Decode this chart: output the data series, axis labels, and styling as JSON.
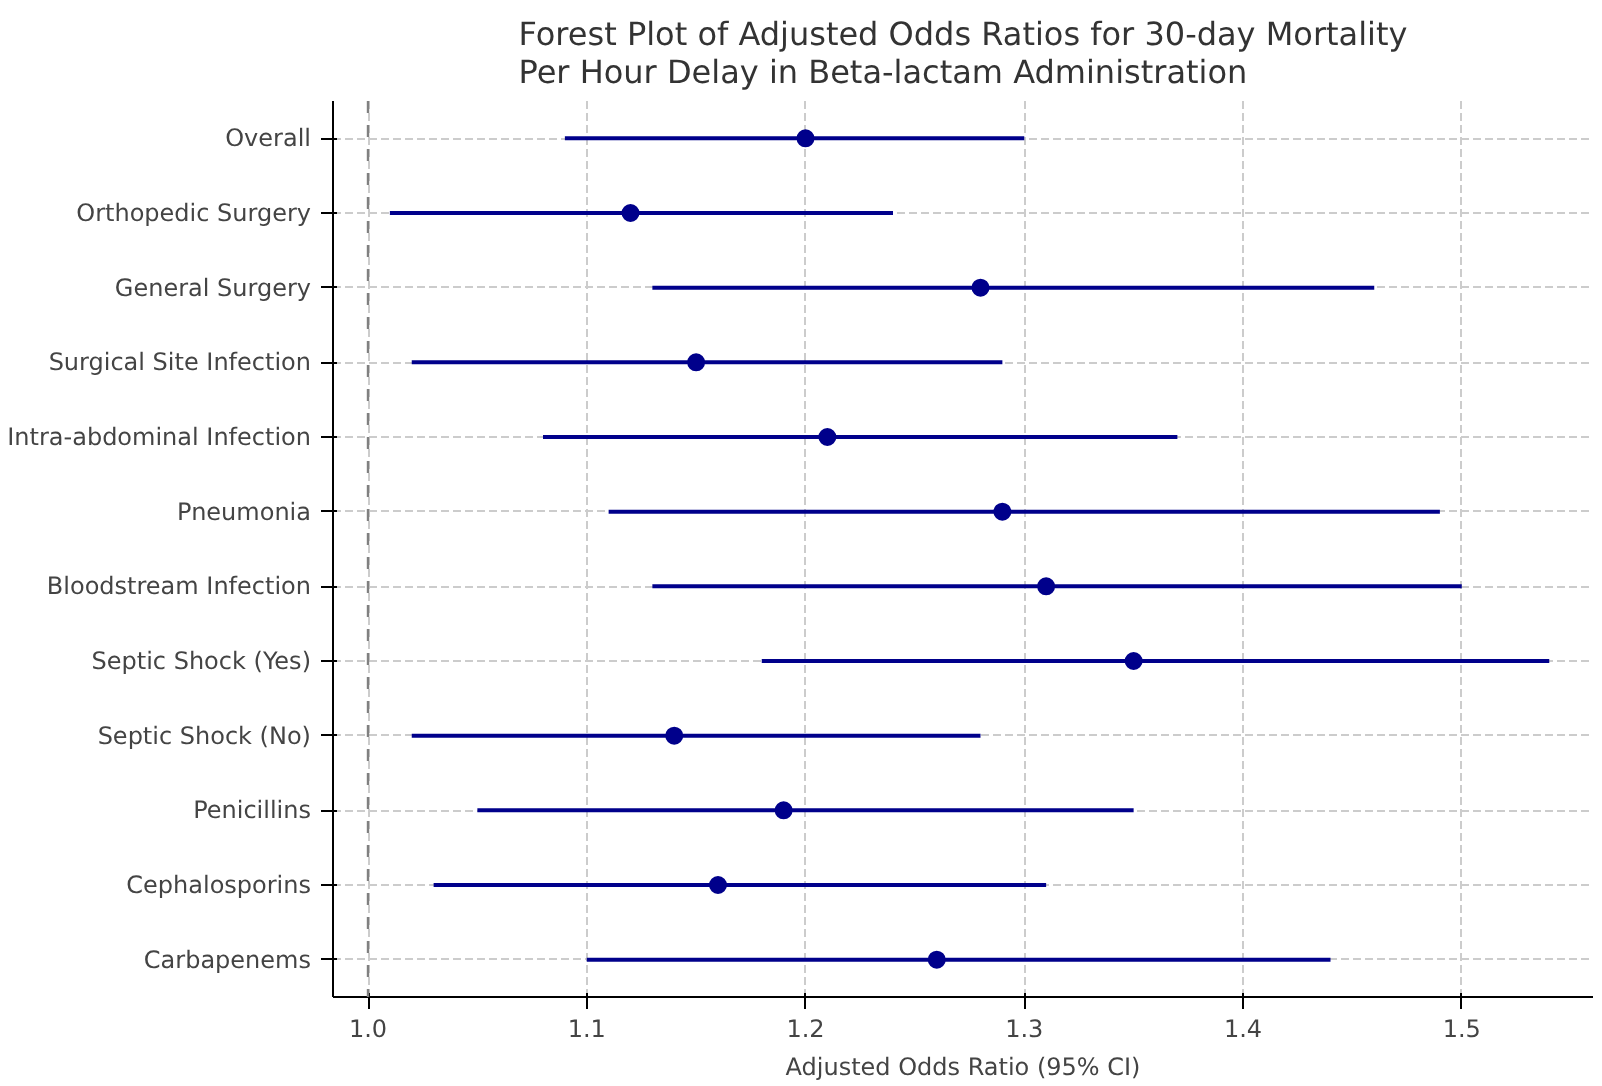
{
  "chart_data": {
    "type": "scatter",
    "orientation": "horizontal",
    "title": "Forest Plot of Adjusted Odds Ratios for 30-day Mortality\nPer Hour Delay in Beta-lactam Administration",
    "xlabel": "Adjusted Odds Ratio (95% CI)",
    "categories": [
      "Overall",
      "Orthopedic Surgery",
      "General Surgery",
      "Surgical Site Infection",
      "Intra-abdominal Infection",
      "Pneumonia",
      "Bloodstream Infection",
      "Septic Shock (Yes)",
      "Septic Shock (No)",
      "Penicillins",
      "Cephalosporins",
      "Carbapenems"
    ],
    "color": "#00008b",
    "values": [
      1.2,
      1.12,
      1.28,
      1.15,
      1.21,
      1.29,
      1.31,
      1.35,
      1.14,
      1.19,
      1.16,
      1.26
    ],
    "errors": [
      [
        1.09,
        1.3
      ],
      [
        1.01,
        1.24
      ],
      [
        1.13,
        1.46
      ],
      [
        1.02,
        1.29
      ],
      [
        1.08,
        1.37
      ],
      [
        1.11,
        1.49
      ],
      [
        1.13,
        1.5
      ],
      [
        1.18,
        1.54
      ],
      [
        1.02,
        1.28
      ],
      [
        1.05,
        1.35
      ],
      [
        1.03,
        1.31
      ],
      [
        1.1,
        1.44
      ]
    ],
    "xlim": [
      0.984,
      1.56
    ],
    "xticks": [
      {
        "value": 1.0,
        "label": "1.0"
      },
      1.1,
      1.2,
      1.3,
      1.4,
      1.5
    ],
    "ref_lines": [
      {
        "axis": "x",
        "value": 1.0,
        "color": "#808080",
        "line_style": "dashed"
      }
    ],
    "grid": true,
    "marker": "circle"
  }
}
